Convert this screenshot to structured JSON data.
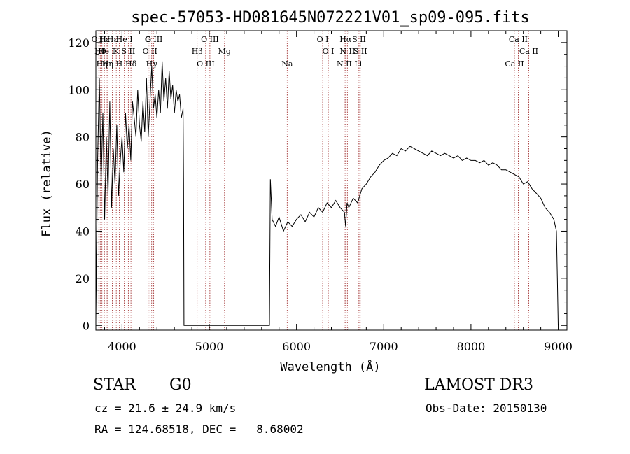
{
  "chart_data": {
    "type": "line",
    "title": "spec-57053-HD081645N072221V01_sp09-095.fits",
    "xlabel": "Wavelength (Å)",
    "ylabel": "Flux (relative)",
    "xlim": [
      3700,
      9100
    ],
    "ylim": [
      -2,
      125
    ],
    "x_ticks": [
      4000,
      5000,
      6000,
      7000,
      8000,
      9000
    ],
    "y_ticks": [
      0,
      20,
      40,
      60,
      80,
      100,
      120
    ],
    "grid": false,
    "legend": "none",
    "series": [
      {
        "x": [
          3700,
          3720,
          3740,
          3760,
          3780,
          3800,
          3820,
          3840,
          3860,
          3880,
          3900,
          3920,
          3940,
          3960,
          3980,
          4000,
          4020,
          4040,
          4060,
          4080,
          4100,
          4120,
          4140,
          4160,
          4180,
          4200,
          4220,
          4240,
          4260,
          4280,
          4300,
          4320,
          4340,
          4360,
          4380,
          4400,
          4420,
          4440,
          4460,
          4480,
          4500,
          4520,
          4540,
          4560,
          4580,
          4600,
          4620,
          4640,
          4660,
          4680,
          4700,
          4705,
          4710,
          5690,
          5695,
          5700,
          5720,
          5760,
          5800,
          5850,
          5900,
          5950,
          6000,
          6050,
          6100,
          6150,
          6200,
          6250,
          6300,
          6350,
          6400,
          6450,
          6500,
          6550,
          6563,
          6580,
          6600,
          6650,
          6700,
          6750,
          6800,
          6850,
          6900,
          6950,
          7000,
          7050,
          7100,
          7150,
          7200,
          7250,
          7300,
          7350,
          7400,
          7450,
          7500,
          7550,
          7600,
          7650,
          7700,
          7750,
          7800,
          7850,
          7900,
          7950,
          8000,
          8050,
          8100,
          8150,
          8200,
          8250,
          8300,
          8350,
          8400,
          8450,
          8500,
          8550,
          8600,
          8650,
          8700,
          8750,
          8800,
          8850,
          8900,
          8950,
          8980,
          8990,
          9000
        ],
        "y": [
          2,
          70,
          105,
          60,
          90,
          45,
          80,
          55,
          95,
          50,
          75,
          60,
          85,
          55,
          70,
          80,
          65,
          90,
          75,
          85,
          70,
          95,
          88,
          80,
          100,
          85,
          78,
          95,
          82,
          105,
          80,
          95,
          110,
          92,
          98,
          88,
          100,
          90,
          112,
          95,
          105,
          92,
          108,
          96,
          102,
          90,
          100,
          95,
          98,
          88,
          92,
          60,
          0,
          0,
          30,
          62,
          45,
          42,
          46,
          40,
          44,
          42,
          45,
          47,
          44,
          48,
          46,
          50,
          48,
          52,
          50,
          53,
          50,
          48,
          42,
          52,
          50,
          54,
          52,
          58,
          60,
          63,
          65,
          68,
          70,
          71,
          73,
          72,
          75,
          74,
          76,
          75,
          74,
          73,
          72,
          74,
          73,
          72,
          73,
          72,
          71,
          72,
          70,
          71,
          70,
          70,
          69,
          70,
          68,
          69,
          68,
          66,
          66,
          65,
          64,
          63,
          60,
          61,
          58,
          56,
          54,
          50,
          48,
          45,
          40,
          20,
          0
        ]
      }
    ],
    "line_labels": [
      {
        "x": 3734,
        "label": "O II"
      },
      {
        "x": 3750,
        "label": "Hθ"
      },
      {
        "x": 3770,
        "label": "Hη"
      },
      {
        "x": 3798,
        "label": "Hε"
      },
      {
        "x": 3820,
        "label": "He I"
      },
      {
        "x": 3835,
        "label": "Hη"
      },
      {
        "x": 3889,
        "label": "Hε"
      },
      {
        "x": 3934,
        "label": "K"
      },
      {
        "x": 3968,
        "label": "H"
      },
      {
        "x": 4026,
        "label": "He I"
      },
      {
        "x": 4072,
        "label": "S II"
      },
      {
        "x": 4102,
        "label": "Hδ"
      },
      {
        "x": 4300,
        "label": "G"
      },
      {
        "x": 4320,
        "label": "O II"
      },
      {
        "x": 4340,
        "label": "Hγ"
      },
      {
        "x": 4363,
        "label": "O III"
      },
      {
        "x": 4861,
        "label": "Hβ"
      },
      {
        "x": 4959,
        "label": "O III"
      },
      {
        "x": 5007,
        "label": "O III"
      },
      {
        "x": 5175,
        "label": "Mg"
      },
      {
        "x": 5893,
        "label": "Na"
      },
      {
        "x": 6300,
        "label": "O I"
      },
      {
        "x": 6364,
        "label": "O I"
      },
      {
        "x": 6548,
        "label": "N II"
      },
      {
        "x": 6563,
        "label": "Hα"
      },
      {
        "x": 6583,
        "label": "N II"
      },
      {
        "x": 6707,
        "label": "Li"
      },
      {
        "x": 6717,
        "label": "S II"
      },
      {
        "x": 6731,
        "label": "S II"
      },
      {
        "x": 8498,
        "label": "Ca II"
      },
      {
        "x": 8542,
        "label": "Ca II"
      },
      {
        "x": 8662,
        "label": "Ca II"
      }
    ]
  },
  "info": {
    "object_type": "STAR",
    "spectral_class": "G0",
    "survey": "LAMOST DR3",
    "cz_text": "cz = 21.6 ± 24.9 km/s",
    "obs_date_text": "Obs-Date: 20150130",
    "coords_text": "RA = 124.68518, DEC =   8.68002"
  }
}
